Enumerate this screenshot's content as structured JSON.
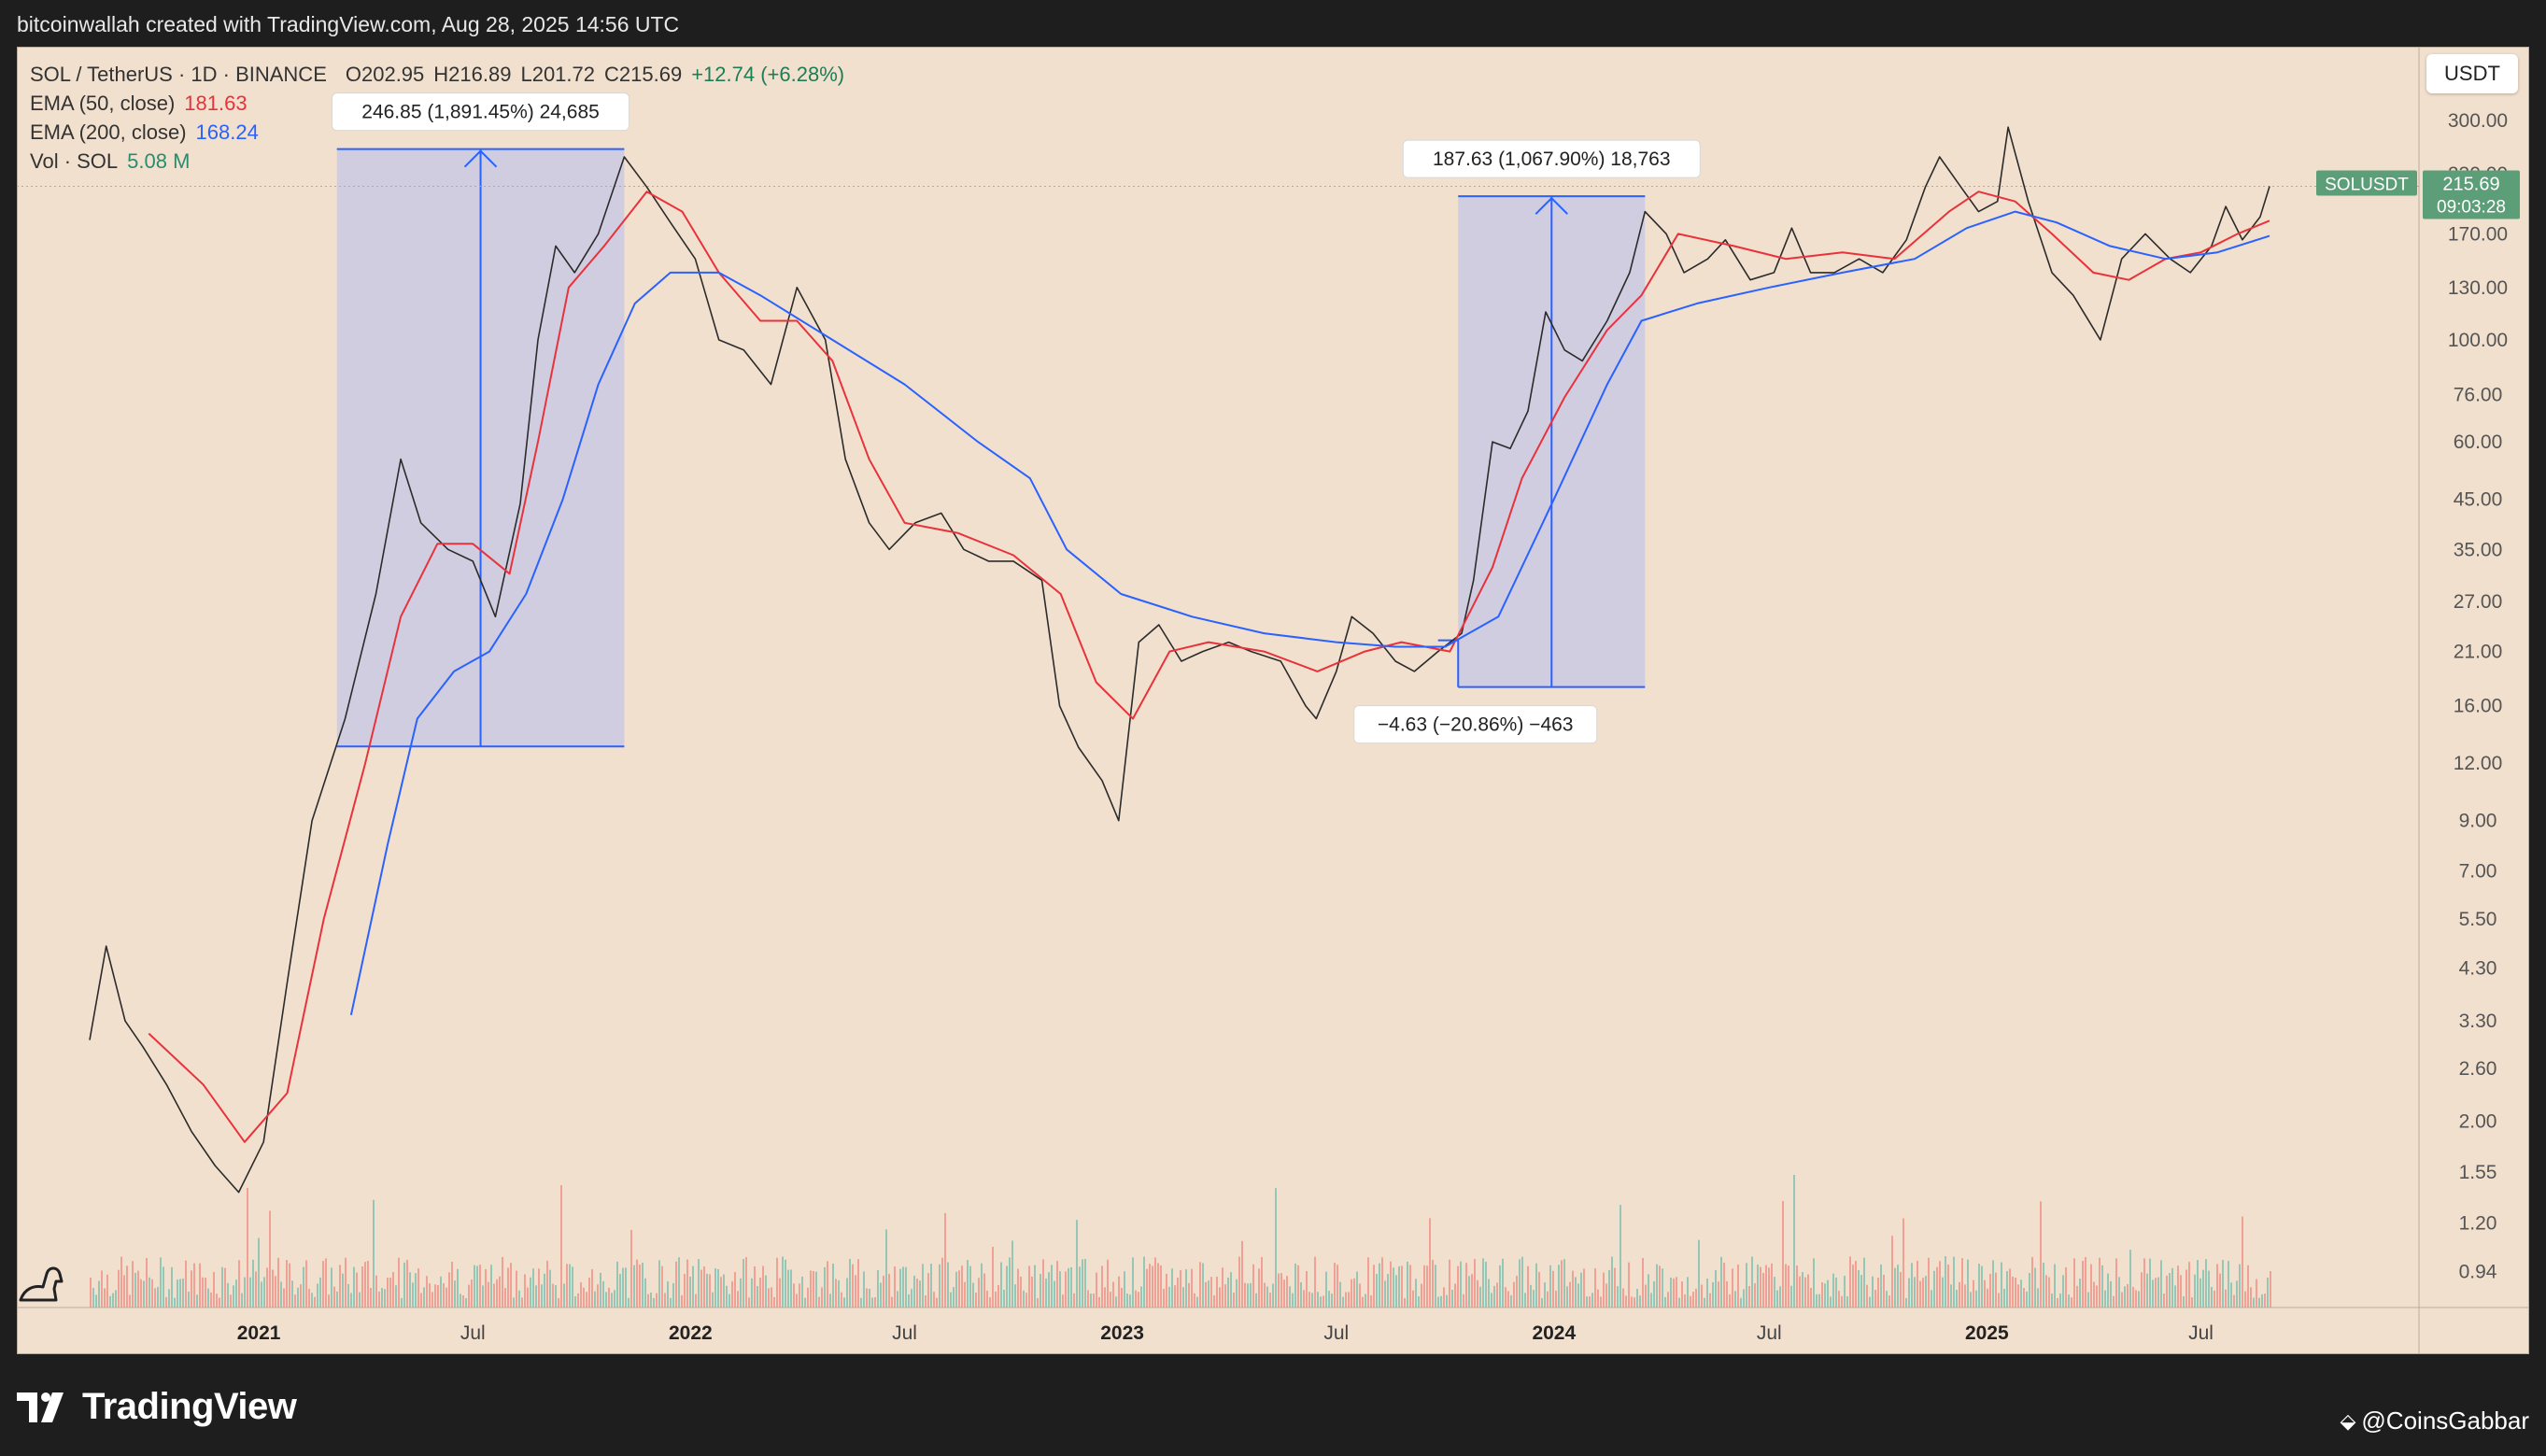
{
  "header": {
    "caption": "bitcoinwallah created with TradingView.com, Aug 28, 2025 14:56 UTC"
  },
  "legend": {
    "symbol": "SOL / TetherUS · 1D · BINANCE",
    "open": "O202.95",
    "high": "H216.89",
    "low": "L201.72",
    "close": "C215.69",
    "change": "+12.74 (+6.28%)",
    "ema50_label": "EMA (50, close)",
    "ema50_value": "181.63",
    "ema200_label": "EMA (200, close)",
    "ema200_value": "168.24",
    "vol_label": "Vol · SOL",
    "vol_value": "5.08 M"
  },
  "currency_button": "USDT",
  "price_tag": {
    "symbol": "SOLUSDT",
    "price": "215.69",
    "countdown": "09:03:28"
  },
  "annotations": [
    {
      "text": "246.85 (1,891.45%) 24,685"
    },
    {
      "text": "187.63 (1,067.90%) 18,763"
    },
    {
      "text": "−4.63 (−20.86%) −463"
    }
  ],
  "branding": {
    "logo_text": "TradingView",
    "credit": "@CoinsGabbar"
  },
  "colors": {
    "background": "#f2e0ce",
    "ema50": "#e8323c",
    "ema200": "#2962ff",
    "range_box": "#c8c8e6",
    "up_volume": "#26a69a",
    "down_volume": "#ef5350",
    "price_tag": "#5b9e78"
  },
  "chart_data": {
    "type": "line",
    "title": "SOL / TetherUS · 1D · BINANCE",
    "y_scale": "log",
    "y_ticks": [
      "300.00",
      "230.00",
      "170.00",
      "130.00",
      "100.00",
      "76.00",
      "60.00",
      "45.00",
      "35.00",
      "27.00",
      "21.00",
      "16.00",
      "12.00",
      "9.00",
      "7.00",
      "5.50",
      "4.30",
      "3.30",
      "2.60",
      "2.00",
      "1.55",
      "1.20",
      "0.94"
    ],
    "x_ticks": [
      "2021",
      "Jul",
      "2022",
      "Jul",
      "2023",
      "Jul",
      "2024",
      "Jul",
      "2025",
      "Jul"
    ],
    "ylim": [
      0.75,
      360
    ],
    "series": [
      {
        "name": "SOL / TetherUS",
        "x": [
          "2020-08-11",
          "2020-08-25",
          "2020-09-10",
          "2020-09-25",
          "2020-10-15",
          "2020-11-05",
          "2020-11-25",
          "2020-12-15",
          "2021-01-05",
          "2021-01-25",
          "2021-02-15",
          "2021-03-15",
          "2021-04-10",
          "2021-05-01",
          "2021-05-18",
          "2021-06-10",
          "2021-07-01",
          "2021-07-20",
          "2021-08-10",
          "2021-08-25",
          "2021-09-09",
          "2021-09-25",
          "2021-10-15",
          "2021-11-06",
          "2021-11-25",
          "2021-12-15",
          "2022-01-05",
          "2022-01-25",
          "2022-02-15",
          "2022-03-10",
          "2022-04-01",
          "2022-04-25",
          "2022-05-12",
          "2022-06-01",
          "2022-06-18",
          "2022-07-10",
          "2022-08-01",
          "2022-08-20",
          "2022-09-10",
          "2022-10-01",
          "2022-10-25",
          "2022-11-09",
          "2022-11-25",
          "2022-12-15",
          "2022-12-29",
          "2023-01-15",
          "2023-02-01",
          "2023-02-20",
          "2023-03-10",
          "2023-04-01",
          "2023-04-20",
          "2023-05-15",
          "2023-06-05",
          "2023-06-14",
          "2023-07-01",
          "2023-07-14",
          "2023-08-01",
          "2023-08-20",
          "2023-09-05",
          "2023-09-25",
          "2023-10-15",
          "2023-10-25",
          "2023-11-10",
          "2023-11-25",
          "2023-12-10",
          "2023-12-25",
          "2024-01-10",
          "2024-01-25",
          "2024-02-15",
          "2024-03-05",
          "2024-03-18",
          "2024-04-05",
          "2024-04-20",
          "2024-05-10",
          "2024-05-25",
          "2024-06-15",
          "2024-07-05",
          "2024-07-20",
          "2024-08-05",
          "2024-08-25",
          "2024-09-15",
          "2024-10-05",
          "2024-10-25",
          "2024-11-10",
          "2024-11-22",
          "2024-12-10",
          "2024-12-25",
          "2025-01-10",
          "2025-01-19",
          "2025-02-05",
          "2025-02-25",
          "2025-03-15",
          "2025-04-07",
          "2025-04-25",
          "2025-05-15",
          "2025-06-05",
          "2025-06-22",
          "2025-07-10",
          "2025-07-22",
          "2025-08-05",
          "2025-08-20",
          "2025-08-28"
        ],
        "values": [
          3.0,
          4.8,
          3.3,
          2.9,
          2.4,
          1.9,
          1.6,
          1.4,
          1.8,
          4.0,
          9.0,
          15.0,
          28.0,
          55.0,
          40.0,
          35.0,
          33.0,
          25.0,
          44.0,
          100.0,
          160.0,
          140.0,
          170.0,
          250.0,
          215.0,
          180.0,
          150.0,
          100.0,
          95.0,
          80.0,
          130.0,
          100.0,
          55.0,
          40.0,
          35.0,
          40.0,
          42.0,
          35.0,
          33.0,
          33.0,
          30.0,
          16.0,
          13.0,
          11.0,
          9.0,
          22.0,
          24.0,
          20.0,
          21.0,
          22.0,
          21.0,
          20.0,
          16.0,
          15.0,
          19.0,
          25.0,
          23.0,
          20.0,
          19.0,
          21.0,
          23.0,
          30.0,
          60.0,
          58.0,
          70.0,
          115.0,
          95.0,
          90.0,
          110.0,
          140.0,
          190.0,
          170.0,
          140.0,
          150.0,
          165.0,
          135.0,
          140.0,
          175.0,
          140.0,
          140.0,
          150.0,
          140.0,
          165.0,
          215.0,
          250.0,
          215.0,
          190.0,
          200.0,
          290.0,
          200.0,
          140.0,
          125.0,
          100.0,
          150.0,
          170.0,
          150.0,
          140.0,
          160.0,
          195.0,
          165.0,
          185.0,
          215.69
        ]
      },
      {
        "name": "EMA (50, close)",
        "x": [
          "2020-09-30",
          "2020-11-15",
          "2020-12-20",
          "2021-01-25",
          "2021-02-25",
          "2021-04-01",
          "2021-05-01",
          "2021-06-01",
          "2021-07-01",
          "2021-08-01",
          "2021-08-25",
          "2021-09-20",
          "2021-10-20",
          "2021-11-25",
          "2021-12-25",
          "2022-01-25",
          "2022-03-01",
          "2022-04-01",
          "2022-05-01",
          "2022-06-01",
          "2022-07-01",
          "2022-08-15",
          "2022-10-01",
          "2022-11-10",
          "2022-12-10",
          "2023-01-10",
          "2023-02-10",
          "2023-03-15",
          "2023-05-01",
          "2023-06-15",
          "2023-07-25",
          "2023-08-25",
          "2023-10-05",
          "2023-11-10",
          "2023-12-05",
          "2024-01-10",
          "2024-02-15",
          "2024-03-15",
          "2024-04-15",
          "2024-06-01",
          "2024-07-15",
          "2024-09-01",
          "2024-10-15",
          "2024-11-30",
          "2024-12-25",
          "2025-01-25",
          "2025-02-25",
          "2025-04-01",
          "2025-05-01",
          "2025-06-01",
          "2025-07-01",
          "2025-08-01",
          "2025-08-28"
        ],
        "values": [
          3.1,
          2.4,
          1.8,
          2.3,
          5.5,
          12.0,
          25.0,
          36.0,
          36.0,
          31.0,
          60.0,
          130.0,
          160.0,
          210.0,
          190.0,
          140.0,
          110.0,
          110.0,
          90.0,
          55.0,
          40.0,
          38.0,
          34.0,
          28.0,
          18.0,
          15.0,
          21.0,
          22.0,
          21.0,
          19.0,
          21.0,
          22.0,
          21.0,
          32.0,
          50.0,
          75.0,
          105.0,
          125.0,
          170.0,
          160.0,
          150.0,
          155.0,
          150.0,
          190.0,
          210.0,
          200.0,
          170.0,
          140.0,
          135.0,
          150.0,
          155.0,
          170.0,
          181.63
        ]
      },
      {
        "name": "EMA (200, close)",
        "x": [
          "2021-03-20",
          "2021-04-20",
          "2021-05-15",
          "2021-06-15",
          "2021-07-15",
          "2021-08-15",
          "2021-09-15",
          "2021-10-15",
          "2021-11-15",
          "2021-12-15",
          "2022-01-25",
          "2022-03-01",
          "2022-05-01",
          "2022-07-01",
          "2022-09-01",
          "2022-10-15",
          "2022-11-15",
          "2022-12-31",
          "2023-03-01",
          "2023-05-01",
          "2023-07-01",
          "2023-08-20",
          "2023-10-01",
          "2023-11-15",
          "2024-01-01",
          "2024-02-15",
          "2024-03-15",
          "2024-05-01",
          "2024-07-01",
          "2024-09-01",
          "2024-11-01",
          "2024-12-15",
          "2025-01-25",
          "2025-03-01",
          "2025-04-15",
          "2025-06-01",
          "2025-07-15",
          "2025-08-28"
        ],
        "values": [
          3.4,
          8.0,
          15.0,
          19.0,
          21.0,
          28.0,
          45.0,
          80.0,
          120.0,
          140.0,
          140.0,
          125.0,
          100.0,
          80.0,
          60.0,
          50.0,
          35.0,
          28.0,
          25.0,
          23.0,
          22.0,
          21.5,
          21.5,
          25.0,
          45.0,
          80.0,
          110.0,
          120.0,
          130.0,
          140.0,
          150.0,
          175.0,
          190.0,
          180.0,
          160.0,
          150.0,
          155.0,
          168.24
        ]
      }
    ],
    "measures": [
      {
        "label": "246.85 (1,891.45%) 24,685",
        "from_date": "2021-03-08",
        "to_date": "2021-11-06",
        "low": 13.05,
        "high": 259.9
      },
      {
        "label": "187.63 (1,067.90%) 18,763",
        "from_date": "2023-10-12",
        "to_date": "2024-03-18",
        "low": 17.57,
        "high": 205.2
      },
      {
        "label": "−4.63 (−20.86%) −463",
        "from_date": "2023-09-25",
        "to_date": "2023-10-12",
        "low": 17.57,
        "high": 22.2
      }
    ],
    "volume": {
      "name": "Vol · SOL",
      "last": "5.08 M"
    },
    "grid": false,
    "legend_position": "top-left"
  }
}
